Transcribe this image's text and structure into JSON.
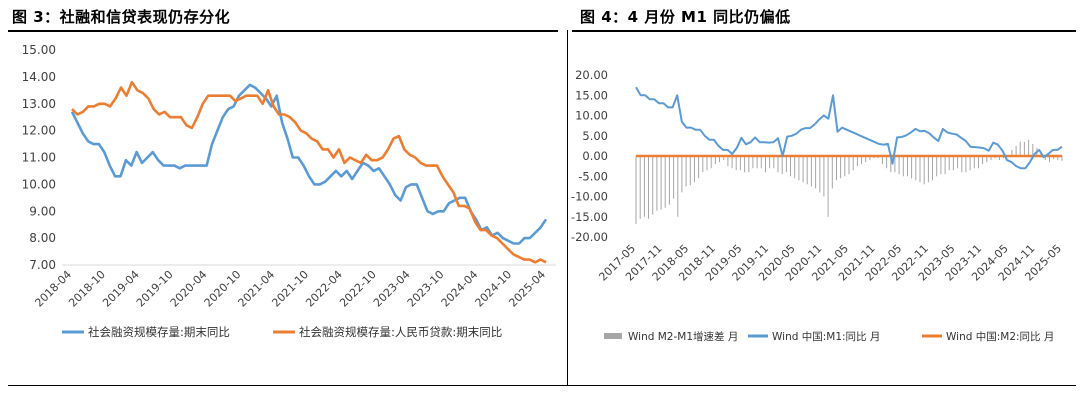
{
  "left_title": "图 3：社融和信贷表现仍存分化",
  "right_title": "图 4：4 月份 M1 同比仍偏低",
  "chart_data": [
    {
      "type": "line",
      "title": "",
      "ylim": [
        7.0,
        15.0
      ],
      "yticks": [
        "15.00",
        "14.00",
        "13.00",
        "12.00",
        "11.00",
        "10.00",
        "9.00",
        "8.00",
        "7.00"
      ],
      "xticks": [
        "2018-04",
        "2018-10",
        "2019-04",
        "2019-10",
        "2020-04",
        "2020-10",
        "2021-04",
        "2021-10",
        "2022-04",
        "2022-10",
        "2023-04",
        "2023-10",
        "2024-04",
        "2024-10",
        "2025-04"
      ],
      "x_start": "2018-04",
      "x_end": "2025-04",
      "grid": false,
      "legend": "bottom",
      "series": [
        {
          "name": "社会融资规模存量:期末同比",
          "color": "#5B9BD5",
          "values": [
            12.7,
            12.3,
            11.9,
            11.6,
            11.5,
            11.5,
            11.2,
            10.7,
            10.3,
            10.3,
            10.9,
            10.7,
            11.2,
            10.8,
            11.0,
            11.2,
            10.9,
            10.7,
            10.7,
            10.7,
            10.6,
            10.7,
            10.7,
            10.7,
            10.7,
            10.7,
            11.5,
            12.0,
            12.5,
            12.8,
            12.9,
            13.3,
            13.5,
            13.7,
            13.6,
            13.4,
            13.2,
            12.9,
            13.3,
            12.3,
            11.7,
            11.0,
            11.0,
            10.7,
            10.3,
            10.0,
            10.0,
            10.1,
            10.3,
            10.5,
            10.3,
            10.5,
            10.2,
            10.5,
            10.8,
            10.7,
            10.5,
            10.6,
            10.3,
            10.0,
            9.6,
            9.4,
            9.9,
            10.0,
            10.0,
            9.5,
            9.0,
            8.9,
            9.0,
            9.0,
            9.3,
            9.4,
            9.5,
            9.5,
            9.0,
            8.7,
            8.3,
            8.4,
            8.1,
            8.2,
            8.0,
            7.9,
            7.8,
            7.8,
            8.0,
            8.0,
            8.2,
            8.4,
            8.7
          ]
        },
        {
          "name": "社会融资规模存量:人民币贷款:期末同比",
          "color": "#ED7D31",
          "values": [
            12.8,
            12.6,
            12.7,
            12.9,
            12.9,
            13.0,
            13.0,
            12.9,
            13.2,
            13.6,
            13.3,
            13.8,
            13.5,
            13.4,
            13.2,
            12.8,
            12.6,
            12.7,
            12.5,
            12.5,
            12.5,
            12.2,
            12.1,
            12.5,
            13.0,
            13.3,
            13.3,
            13.3,
            13.3,
            13.3,
            13.1,
            13.2,
            13.3,
            13.3,
            13.3,
            13.0,
            13.5,
            12.9,
            12.6,
            12.6,
            12.5,
            12.3,
            12.0,
            11.9,
            11.7,
            11.6,
            11.3,
            11.3,
            11.0,
            11.3,
            10.8,
            11.0,
            10.9,
            10.8,
            11.1,
            10.9,
            10.9,
            11.0,
            11.3,
            11.7,
            11.8,
            11.3,
            11.1,
            11.0,
            10.8,
            10.7,
            10.7,
            10.7,
            10.3,
            10.0,
            9.7,
            9.2,
            9.2,
            9.1,
            8.6,
            8.3,
            8.3,
            8.1,
            8.0,
            7.8,
            7.6,
            7.4,
            7.3,
            7.2,
            7.2,
            7.1,
            7.2,
            7.1
          ]
        }
      ]
    },
    {
      "type": "line",
      "title": "",
      "ylim": [
        -20.0,
        20.0
      ],
      "yticks": [
        "20.00",
        "15.00",
        "10.00",
        "5.00",
        "0.00",
        "-5.00",
        "-10.00",
        "-15.00",
        "-20.00"
      ],
      "xticks": [
        "2017-05",
        "2017-11",
        "2018-05",
        "2018-11",
        "2019-05",
        "2019-11",
        "2020-05",
        "2020-11",
        "2021-05",
        "2021-11",
        "2022-05",
        "2022-11",
        "2023-05",
        "2023-11",
        "2024-05",
        "2024-11",
        "2025-05"
      ],
      "x_start": "2017-05",
      "x_end": "2025-05",
      "grid": false,
      "legend": "bottom",
      "series": [
        {
          "name": "Wind M2-M1增速差 月",
          "color": "#A6A6A6",
          "kind": "bar",
          "values": [
            -16.8,
            -15.5,
            -15.0,
            -15.5,
            -14.5,
            -13.5,
            -13.2,
            -12.8,
            -12.0,
            -10.5,
            -15.0,
            -9.0,
            -7.5,
            -7.2,
            -6.5,
            -5.5,
            -4.0,
            -3.5,
            -3.0,
            -2.0,
            -1.5,
            -1.0,
            -2.5,
            -3.0,
            -3.5,
            -3.5,
            -4.0,
            -4.0,
            -3.0,
            -3.0,
            -3.0,
            -4.0,
            -3.0,
            -3.0,
            -4.0,
            -4.5,
            -4.0,
            -5.0,
            -5.5,
            -6.0,
            -6.5,
            -7.0,
            -7.5,
            -8.0,
            -9.0,
            -10.0,
            -15.0,
            -8.0,
            -6.0,
            -5.5,
            -5.0,
            -4.5,
            -3.5,
            -2.5,
            -2.0,
            -1.5,
            -1.0,
            -0.5,
            -0.5,
            -2.0,
            -3.0,
            -4.0,
            -4.0,
            -4.5,
            -5.0,
            -5.0,
            -5.5,
            -6.0,
            -6.5,
            -7.0,
            -6.5,
            -6.0,
            -5.0,
            -4.5,
            -4.5,
            -3.5,
            -3.5,
            -3.0,
            -4.0,
            -4.0,
            -3.5,
            -3.0,
            -3.0,
            -2.0,
            -1.5,
            -1.0,
            -0.5,
            -1.0,
            -0.5,
            -0.3,
            1.5,
            2.5,
            3.5,
            3.5,
            4.0,
            3.0,
            2.0,
            1.0,
            -1.0,
            -1.5,
            -0.8,
            -1.0,
            -1.2
          ],
          "offset_months": 0
        },
        {
          "name": "Wind 中国:M1:同比 月",
          "color": "#5B9BD5",
          "values": [
            17.0,
            15.0,
            15.0,
            14.0,
            14.0,
            13.0,
            13.0,
            12.0,
            12.0,
            15.0,
            8.5,
            7.0,
            7.0,
            6.5,
            6.5,
            5.0,
            4.0,
            4.0,
            2.5,
            1.5,
            1.5,
            0.5,
            2.0,
            4.5,
            2.9,
            3.4,
            4.6,
            3.4,
            3.4,
            3.3,
            3.4,
            4.4,
            0.0,
            4.8,
            5.0,
            5.5,
            6.5,
            6.9,
            6.9,
            7.8,
            9.0,
            10.0,
            9.2,
            15.0,
            6.0,
            7.0,
            6.5,
            6.0,
            5.5,
            5.0,
            4.5,
            4.0,
            3.5,
            3.0,
            2.8,
            3.0,
            -1.9,
            4.6,
            4.7,
            5.1,
            5.8,
            6.7,
            6.1,
            6.2,
            5.6,
            4.6,
            3.7,
            6.7,
            5.8,
            5.5,
            5.3,
            4.5,
            3.7,
            2.3,
            2.2,
            2.1,
            1.9,
            1.3,
            3.3,
            2.8,
            1.3,
            -1.0,
            -1.5,
            -2.5,
            -3.0,
            -3.0,
            -1.5,
            0.5,
            1.5,
            -0.3,
            0.5,
            1.5,
            1.5,
            2.3
          ],
          "offset_months": 0
        },
        {
          "name": "Wind 中国:M2:同比 月",
          "color": "#ED7D31",
          "values": [
            0
          ],
          "offset_months": 0
        }
      ]
    }
  ]
}
